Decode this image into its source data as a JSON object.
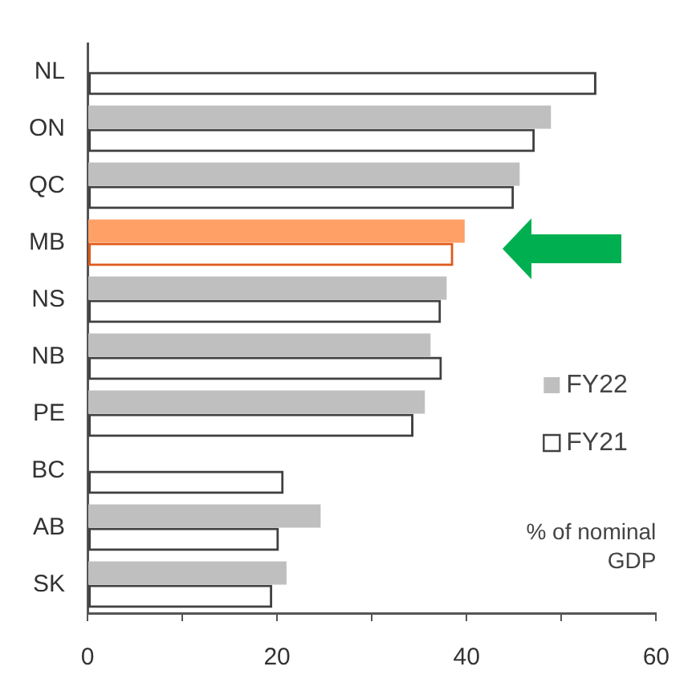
{
  "chart_data": {
    "type": "bar",
    "orientation": "horizontal",
    "categories": [
      "NL",
      "ON",
      "QC",
      "MB",
      "NS",
      "NB",
      "PE",
      "BC",
      "AB",
      "SK"
    ],
    "series": [
      {
        "name": "FY22",
        "color": "#bfbfbf",
        "colors": [
          "#bfbfbf",
          "#bfbfbf",
          "#bfbfbf",
          "#ffa066",
          "#bfbfbf",
          "#bfbfbf",
          "#bfbfbf",
          "#bfbfbf",
          "#bfbfbf",
          "#bfbfbf"
        ],
        "values": [
          null,
          48.9,
          45.6,
          39.8,
          37.9,
          36.2,
          35.6,
          null,
          24.6,
          21.0
        ]
      },
      {
        "name": "FY21",
        "color": "#404040",
        "colors": [
          "#404040",
          "#404040",
          "#404040",
          "#e05a1a",
          "#404040",
          "#404040",
          "#404040",
          "#404040",
          "#404040",
          "#404040"
        ],
        "values": [
          53.7,
          47.2,
          45.0,
          38.6,
          37.3,
          37.4,
          34.4,
          20.7,
          20.2,
          19.5
        ]
      }
    ],
    "xlim": [
      0,
      60
    ],
    "xticks": [
      0,
      {
        "value": 10,
        "label": null
      },
      20,
      {
        "value": 30,
        "label": null
      },
      40,
      {
        "value": 50,
        "label": null
      },
      60
    ],
    "grid": false,
    "legend": "right",
    "annotations": [
      "% of nominal GDP"
    ]
  }
}
